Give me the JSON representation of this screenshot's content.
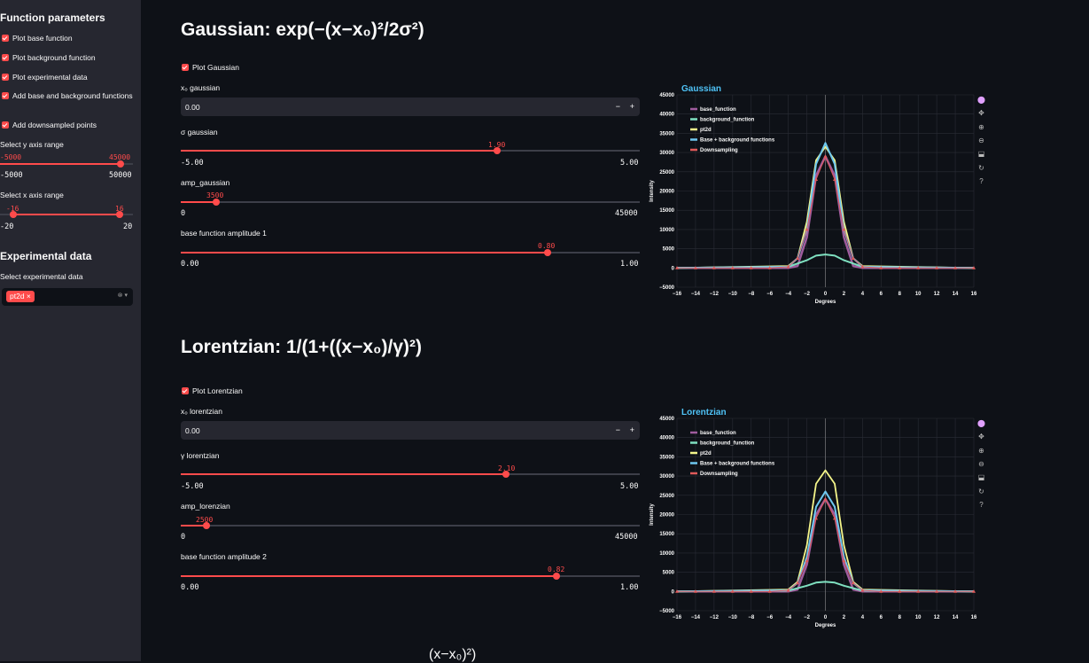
{
  "sidebar": {
    "title": "Function parameters",
    "checkboxes": [
      {
        "label": "Plot base function"
      },
      {
        "label": "Plot background function"
      },
      {
        "label": "Plot experimental data"
      },
      {
        "label": "Add base and background functions"
      },
      {
        "label": "Add downsampled points"
      }
    ],
    "y_range": {
      "label": "Select y axis range",
      "low": "-5000",
      "high": "45000",
      "min": "-5000",
      "max": "50000",
      "low_value": -5000,
      "high_value": 45000
    },
    "x_range": {
      "label": "Select x axis range",
      "low": "-16",
      "high": "16",
      "min": "-20",
      "max": "20",
      "low_value": -16,
      "high_value": 16
    },
    "exp_title": "Experimental data",
    "exp_label": "Select experimental data",
    "exp_tag": "pt2d",
    "exp_tag_close": "×",
    "exp_controls": "⊗ ▾"
  },
  "sections": [
    {
      "heading": "Gaussian: exp(−(x−x₀)²/2σ²)",
      "plot_checkbox": "Plot Gaussian",
      "x0_label": "x₀ gaussian",
      "x0_value": "0.00",
      "stepper_minus": "−",
      "stepper_plus": "+",
      "sliders": [
        {
          "label": "σ gaussian",
          "value": "1.90",
          "min": "-5.00",
          "max": "5.00",
          "fraction": 0.69
        },
        {
          "label": "amp_gaussian",
          "value": "3500",
          "min": "0",
          "max": "45000",
          "fraction": 0.078
        },
        {
          "label": "base function amplitude 1",
          "value": "0.80",
          "min": "0.00",
          "max": "1.00",
          "fraction": 0.8
        }
      ],
      "chart_title": "Gaussian"
    },
    {
      "heading": "Lorentzian: 1/(1+((x−x₀)/γ)²)",
      "plot_checkbox": "Plot Lorentzian",
      "x0_label": "x₀ lorentzian",
      "x0_value": "0.00",
      "stepper_minus": "−",
      "stepper_plus": "+",
      "sliders": [
        {
          "label": "γ lorentzian",
          "value": "2.10",
          "min": "-5.00",
          "max": "5.00",
          "fraction": 0.71
        },
        {
          "label": "amp_lorenzian",
          "value": "2500",
          "min": "0",
          "max": "45000",
          "fraction": 0.056
        },
        {
          "label": "base function amplitude 2",
          "value": "0.82",
          "min": "0.00",
          "max": "1.00",
          "fraction": 0.82
        }
      ],
      "chart_title": "Lorentzian"
    }
  ],
  "chart_common": {
    "xlabel": "Degrees",
    "ylabel": "Intensity",
    "xticks": [
      "−16",
      "−14",
      "−12",
      "−10",
      "−8",
      "−6",
      "−4",
      "−2",
      "0",
      "2",
      "4",
      "6",
      "8",
      "10",
      "12",
      "14",
      "16"
    ],
    "yticks": [
      "−5000",
      "0",
      "5000",
      "10000",
      "15000",
      "20000",
      "25000",
      "30000",
      "35000",
      "40000",
      "45000"
    ],
    "legend": [
      {
        "name": "base_function",
        "color": "#a05c9e"
      },
      {
        "name": "background_function",
        "color": "#7fe0c0"
      },
      {
        "name": "pt2d",
        "color": "#f4f58a"
      },
      {
        "name": "Base + background functions",
        "color": "#6ec8f0"
      },
      {
        "name": "Downsampling",
        "color": "#e05a5a"
      }
    ]
  },
  "chart_data": [
    {
      "type": "line",
      "title": "Gaussian",
      "xlabel": "Degrees",
      "ylabel": "Intensity",
      "xlim": [
        -16,
        16
      ],
      "ylim": [
        -5000,
        45000
      ],
      "legend_position": "top-left",
      "series": [
        {
          "name": "base_function",
          "x": [
            -16,
            -4,
            -3,
            -2,
            -1,
            0,
            1,
            2,
            3,
            4,
            16
          ],
          "y": [
            0,
            0,
            500,
            8000,
            24000,
            29000,
            24000,
            8000,
            500,
            0,
            0
          ]
        },
        {
          "name": "background_function",
          "x": [
            -16,
            -4,
            -2,
            -1,
            0,
            1,
            2,
            4,
            16
          ],
          "y": [
            0,
            300,
            2000,
            3200,
            3500,
            3200,
            2000,
            300,
            0
          ]
        },
        {
          "name": "pt2d",
          "x": [
            -16,
            -4,
            -3,
            -2,
            -1,
            0,
            1,
            2,
            3,
            4,
            16
          ],
          "y": [
            0,
            500,
            2500,
            12000,
            28000,
            31500,
            28000,
            12000,
            2500,
            500,
            0
          ]
        },
        {
          "name": "Base + background functions",
          "x": [
            -16,
            -4,
            -3,
            -2,
            -1,
            0,
            1,
            2,
            3,
            4,
            16
          ],
          "y": [
            0,
            300,
            2500,
            10000,
            27000,
            32500,
            27000,
            10000,
            2500,
            300,
            0
          ]
        },
        {
          "name": "Downsampling",
          "x": [
            -16,
            -14,
            -12,
            -10,
            -8,
            -6,
            -4,
            -3,
            -2,
            -1,
            0,
            1,
            2,
            3,
            4,
            6,
            8,
            10,
            12,
            14,
            16
          ],
          "y": [
            0,
            0,
            0,
            0,
            0,
            0,
            300,
            2500,
            10000,
            23000,
            29000,
            23000,
            10000,
            2500,
            300,
            0,
            0,
            0,
            0,
            0,
            0
          ]
        }
      ]
    },
    {
      "type": "line",
      "title": "Lorentzian",
      "xlabel": "Degrees",
      "ylabel": "Intensity",
      "xlim": [
        -16,
        16
      ],
      "ylim": [
        -5000,
        45000
      ],
      "legend_position": "top-left",
      "series": [
        {
          "name": "base_function",
          "x": [
            -16,
            -4,
            -3,
            -2,
            -1,
            0,
            1,
            2,
            3,
            4,
            16
          ],
          "y": [
            0,
            0,
            500,
            7000,
            20000,
            24000,
            20000,
            7000,
            500,
            0,
            0
          ]
        },
        {
          "name": "background_function",
          "x": [
            -16,
            -4,
            -2,
            -1,
            0,
            1,
            2,
            4,
            16
          ],
          "y": [
            0,
            200,
            1500,
            2300,
            2500,
            2300,
            1500,
            200,
            0
          ]
        },
        {
          "name": "pt2d",
          "x": [
            -16,
            -4,
            -3,
            -2,
            -1,
            0,
            1,
            2,
            3,
            4,
            16
          ],
          "y": [
            0,
            500,
            2500,
            12000,
            28000,
            31500,
            28000,
            12000,
            2500,
            500,
            0
          ]
        },
        {
          "name": "Base + background functions",
          "x": [
            -16,
            -4,
            -3,
            -2,
            -1,
            0,
            1,
            2,
            3,
            4,
            16
          ],
          "y": [
            0,
            300,
            2200,
            9000,
            22000,
            26000,
            22000,
            9000,
            2200,
            300,
            0
          ]
        },
        {
          "name": "Downsampling",
          "x": [
            -16,
            -14,
            -12,
            -10,
            -8,
            -6,
            -4,
            -3,
            -2,
            -1,
            0,
            1,
            2,
            3,
            4,
            6,
            8,
            10,
            12,
            14,
            16
          ],
          "y": [
            0,
            0,
            0,
            0,
            0,
            0,
            300,
            2200,
            8000,
            19000,
            24000,
            19000,
            8000,
            2200,
            300,
            0,
            0,
            0,
            0,
            0,
            0
          ]
        }
      ]
    }
  ],
  "toolbar_icons": [
    "plotly-logo-icon",
    "pan-icon",
    "zoom-in-icon",
    "zoom-out-icon",
    "download-icon",
    "reset-icon",
    "help-icon"
  ],
  "next_heading_partial": "(x−x₀)²)"
}
